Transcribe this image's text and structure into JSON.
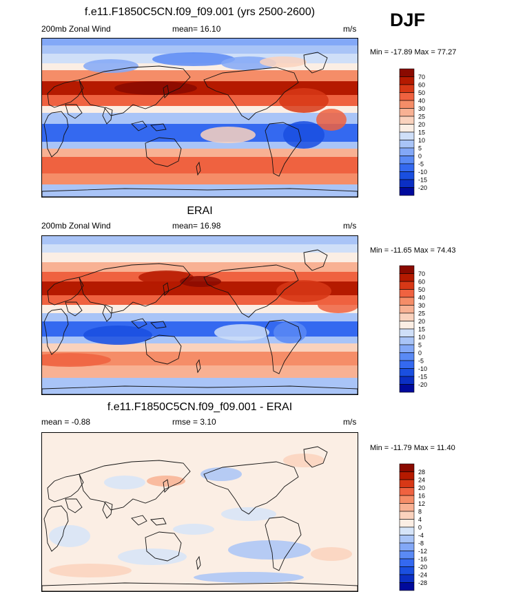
{
  "season": "DJF",
  "chart_data": [
    {
      "type": "heatmap",
      "title": "f.e11.F1850C5CN.f09_f09.001 (yrs 2500-2600)",
      "left_label": "200mb Zonal Wind",
      "center_label": "mean=  16.10",
      "units": "m/s",
      "minmax": "Min = -17.89 Max =  77.27",
      "min": -17.89,
      "max": 77.27,
      "mean": 16.1,
      "contour_levels": [
        "-20",
        "-15",
        "-10",
        "-5",
        "0",
        "5",
        "10",
        "15",
        "20",
        "25",
        "30",
        "40",
        "50",
        "60",
        "70"
      ],
      "colors": [
        "#000a9c",
        "#0b2fc4",
        "#1a4fe0",
        "#3469f0",
        "#5a8af5",
        "#83a8f7",
        "#a9c4f7",
        "#cfdff8",
        "#fbeee4",
        "#fad2bd",
        "#f8b193",
        "#f58d68",
        "#ef6240",
        "#d73816",
        "#b51a00",
        "#8a0a00"
      ]
    },
    {
      "type": "heatmap",
      "title": "ERAI",
      "left_label": "200mb Zonal Wind",
      "center_label": "mean=  16.98",
      "units": "m/s",
      "minmax": "Min = -11.65 Max =  74.43",
      "min": -11.65,
      "max": 74.43,
      "mean": 16.98,
      "contour_levels": [
        "-20",
        "-15",
        "-10",
        "-5",
        "0",
        "5",
        "10",
        "15",
        "20",
        "25",
        "30",
        "40",
        "50",
        "60",
        "70"
      ],
      "colors": [
        "#000a9c",
        "#0b2fc4",
        "#1a4fe0",
        "#3469f0",
        "#5a8af5",
        "#83a8f7",
        "#a9c4f7",
        "#cfdff8",
        "#fbeee4",
        "#fad2bd",
        "#f8b193",
        "#f58d68",
        "#ef6240",
        "#d73816",
        "#b51a00",
        "#8a0a00"
      ]
    },
    {
      "type": "heatmap",
      "title": "f.e11.F1850C5CN.f09_f09.001 - ERAI",
      "left_label": "mean =  -0.88",
      "center_label": "rmse =   3.10",
      "units": "m/s",
      "minmax": "Min = -11.79 Max =  11.40",
      "min": -11.79,
      "max": 11.4,
      "mean": -0.88,
      "rmse": 3.1,
      "contour_levels": [
        "-28",
        "-24",
        "-20",
        "-16",
        "-12",
        "-8",
        "-4",
        "0",
        "4",
        "8",
        "12",
        "16",
        "20",
        "24",
        "28"
      ],
      "colors": [
        "#000a9c",
        "#0b2fc4",
        "#1a4fe0",
        "#3469f0",
        "#5a8af5",
        "#83a8f7",
        "#a9c4f7",
        "#d6e4f8",
        "#fbeee4",
        "#fad2bd",
        "#f8b193",
        "#f58d68",
        "#ef6240",
        "#d73816",
        "#b51a00",
        "#8a0a00"
      ]
    }
  ]
}
